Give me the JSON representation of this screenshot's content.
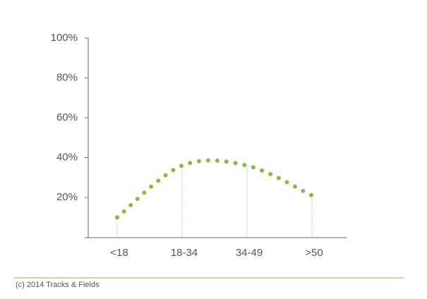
{
  "chart_data": {
    "type": "line",
    "categories": [
      "<18",
      "18-34",
      "34-49",
      ">50"
    ],
    "values": [
      10,
      36,
      36,
      21
    ],
    "color": "#8cba3f",
    "ylim": [
      0,
      100
    ],
    "yticks": [
      {
        "value": 20,
        "label": "20%"
      },
      {
        "value": 40,
        "label": "40%"
      },
      {
        "value": 60,
        "label": "60%"
      },
      {
        "value": 80,
        "label": "80%"
      },
      {
        "value": 100,
        "label": "100%"
      }
    ],
    "source": "(c) 2014 Tracks & Fields"
  }
}
